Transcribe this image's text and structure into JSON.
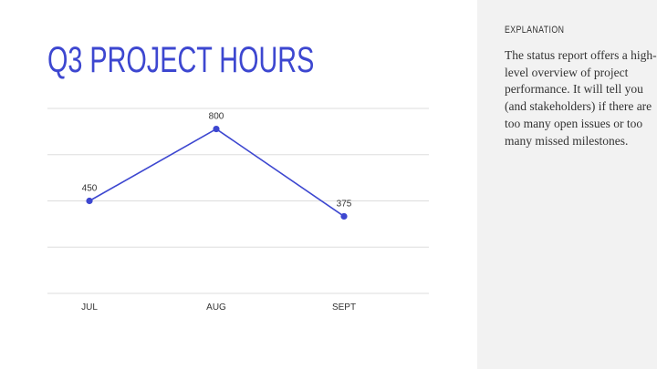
{
  "title": "Q3 PROJECT HOURS",
  "explanation": {
    "label": "EXPLANATION",
    "text": "The status report offers a high-level overview of project performance. It will tell you (and stakeholders) if there are too many open issues or too many missed milestones."
  },
  "colors": {
    "accent": "#3d47d0",
    "panel": "#f2f2f2",
    "grid": "#dddddd"
  },
  "chart_data": {
    "type": "line",
    "title": "Q3 PROJECT HOURS",
    "categories": [
      "JUL",
      "AUG",
      "SEPT"
    ],
    "values": [
      450,
      800,
      375
    ],
    "data_labels": [
      "450",
      "800",
      "375"
    ],
    "ylim": [
      0,
      900
    ],
    "gridlines": [
      0,
      225,
      450,
      675,
      900
    ],
    "grid": true,
    "y_tick_labels_visible": false,
    "legend": "none"
  }
}
